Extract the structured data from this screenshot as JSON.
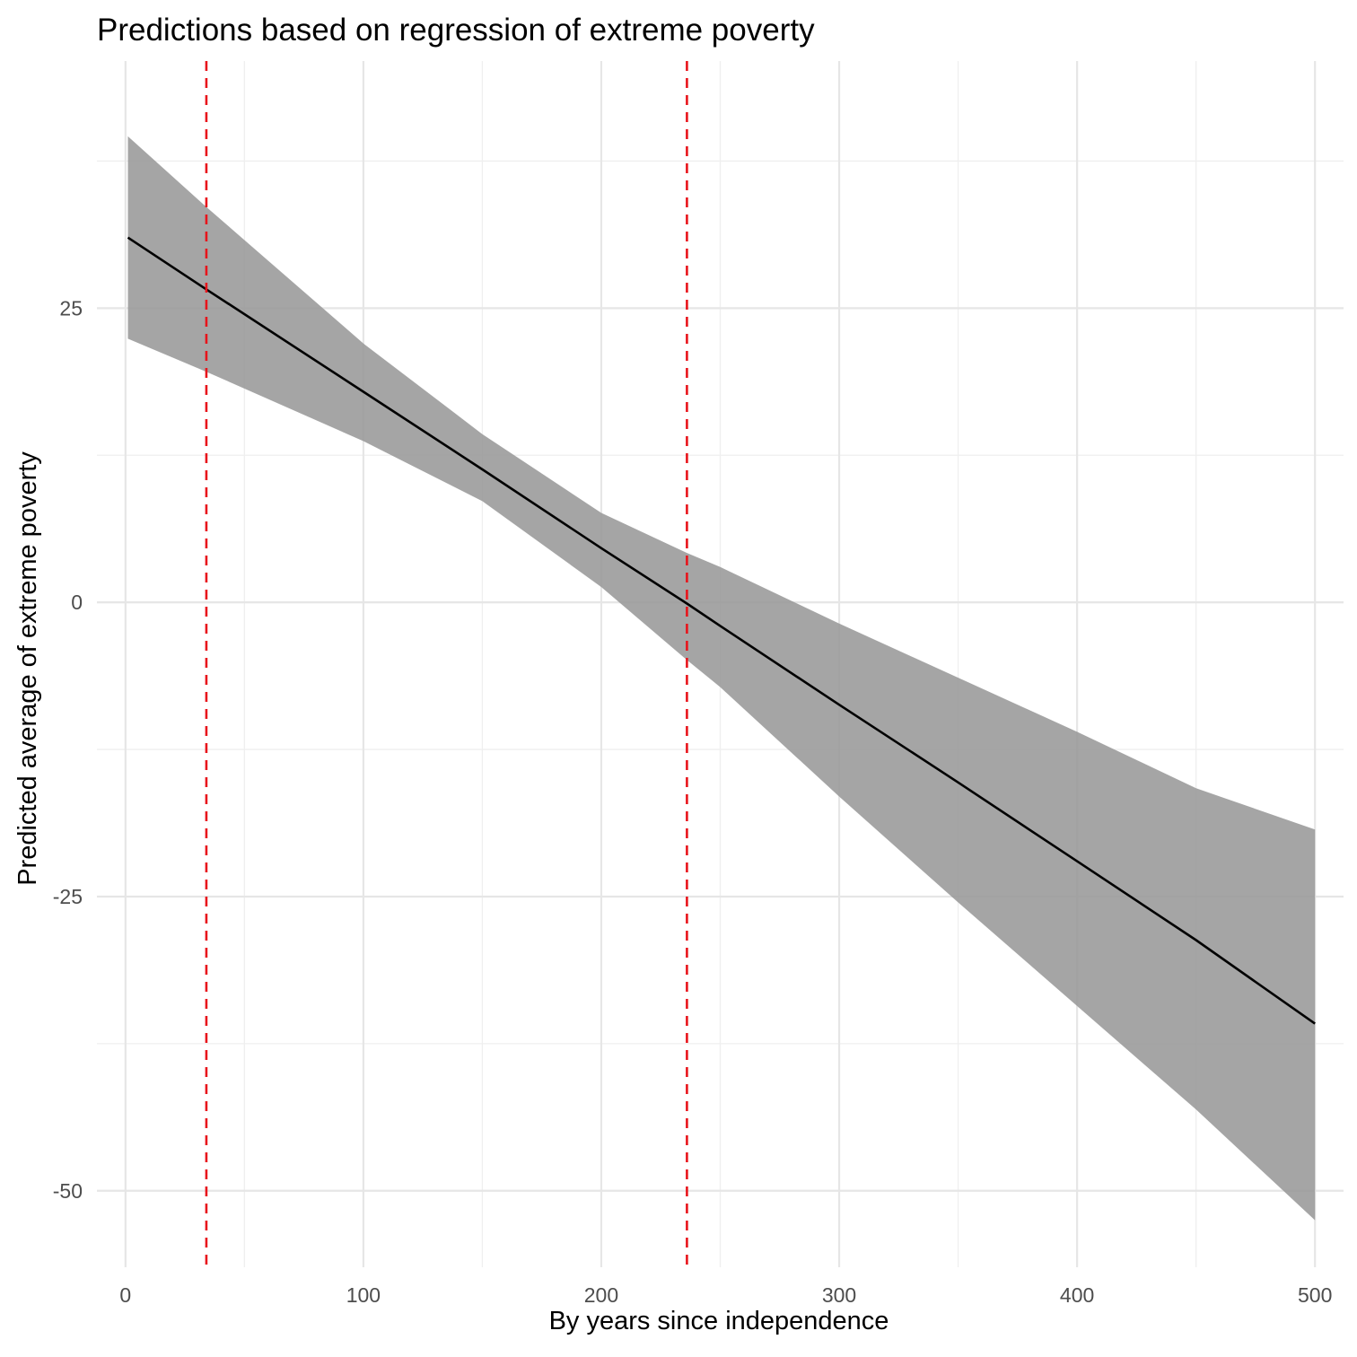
{
  "chart_data": {
    "type": "line",
    "title": "Predictions based on regression of extreme poverty",
    "xlabel": "By years since independence",
    "ylabel": "Predicted average of extreme poverty",
    "xlim": [
      -12,
      512
    ],
    "ylim": [
      -56.5,
      46
    ],
    "x_ticks": [
      0,
      100,
      200,
      300,
      400,
      500
    ],
    "x_tick_labels": [
      "0",
      "100",
      "200",
      "300",
      "400",
      "500"
    ],
    "x_minor_ticks": [
      50,
      150,
      250,
      350,
      450
    ],
    "y_ticks": [
      -50,
      -25,
      0,
      25
    ],
    "y_tick_labels": [
      "-50",
      "-25",
      "0",
      "25"
    ],
    "y_minor_ticks": [
      -37.5,
      -12.5,
      12.5,
      37.5
    ],
    "grid": true,
    "legend": "none",
    "series": [
      {
        "x": [
          1,
          34,
          100,
          150,
          200,
          236,
          250,
          300,
          350,
          400,
          450,
          500
        ],
        "y": [
          31.0,
          26.6,
          17.9,
          11.3,
          4.6,
          -0.1,
          -2.0,
          -8.7,
          -15.3,
          -22.0,
          -28.7,
          -35.8
        ],
        "lower": [
          22.4,
          19.6,
          13.7,
          8.6,
          1.3,
          -4.9,
          -7.2,
          -16.5,
          -25.5,
          -34.3,
          -43.1,
          -52.5
        ],
        "upper": [
          39.6,
          33.6,
          22.0,
          14.3,
          7.6,
          4.2,
          3.0,
          -1.8,
          -6.4,
          -11.0,
          -15.8,
          -19.3
        ]
      }
    ],
    "vlines": [
      34,
      236
    ],
    "colors": {
      "line": "#000000",
      "ribbon": "#999999",
      "vline": "#e8141b"
    }
  }
}
